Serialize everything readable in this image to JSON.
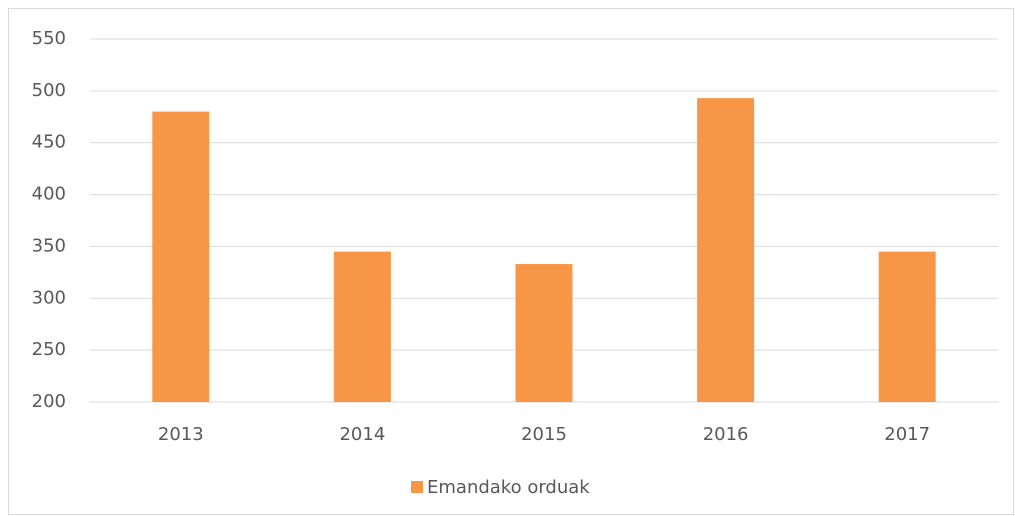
{
  "chart_data": {
    "type": "bar",
    "categories": [
      "2013",
      "2014",
      "2015",
      "2016",
      "2017"
    ],
    "series": [
      {
        "name": "Emandako orduak",
        "color": "#f79646",
        "values": [
          480,
          345,
          333,
          493,
          345
        ]
      }
    ],
    "ylim": [
      200,
      550
    ],
    "yticks": [
      200,
      250,
      300,
      350,
      400,
      450,
      500,
      550
    ],
    "grid": true,
    "legend": "bottom"
  }
}
